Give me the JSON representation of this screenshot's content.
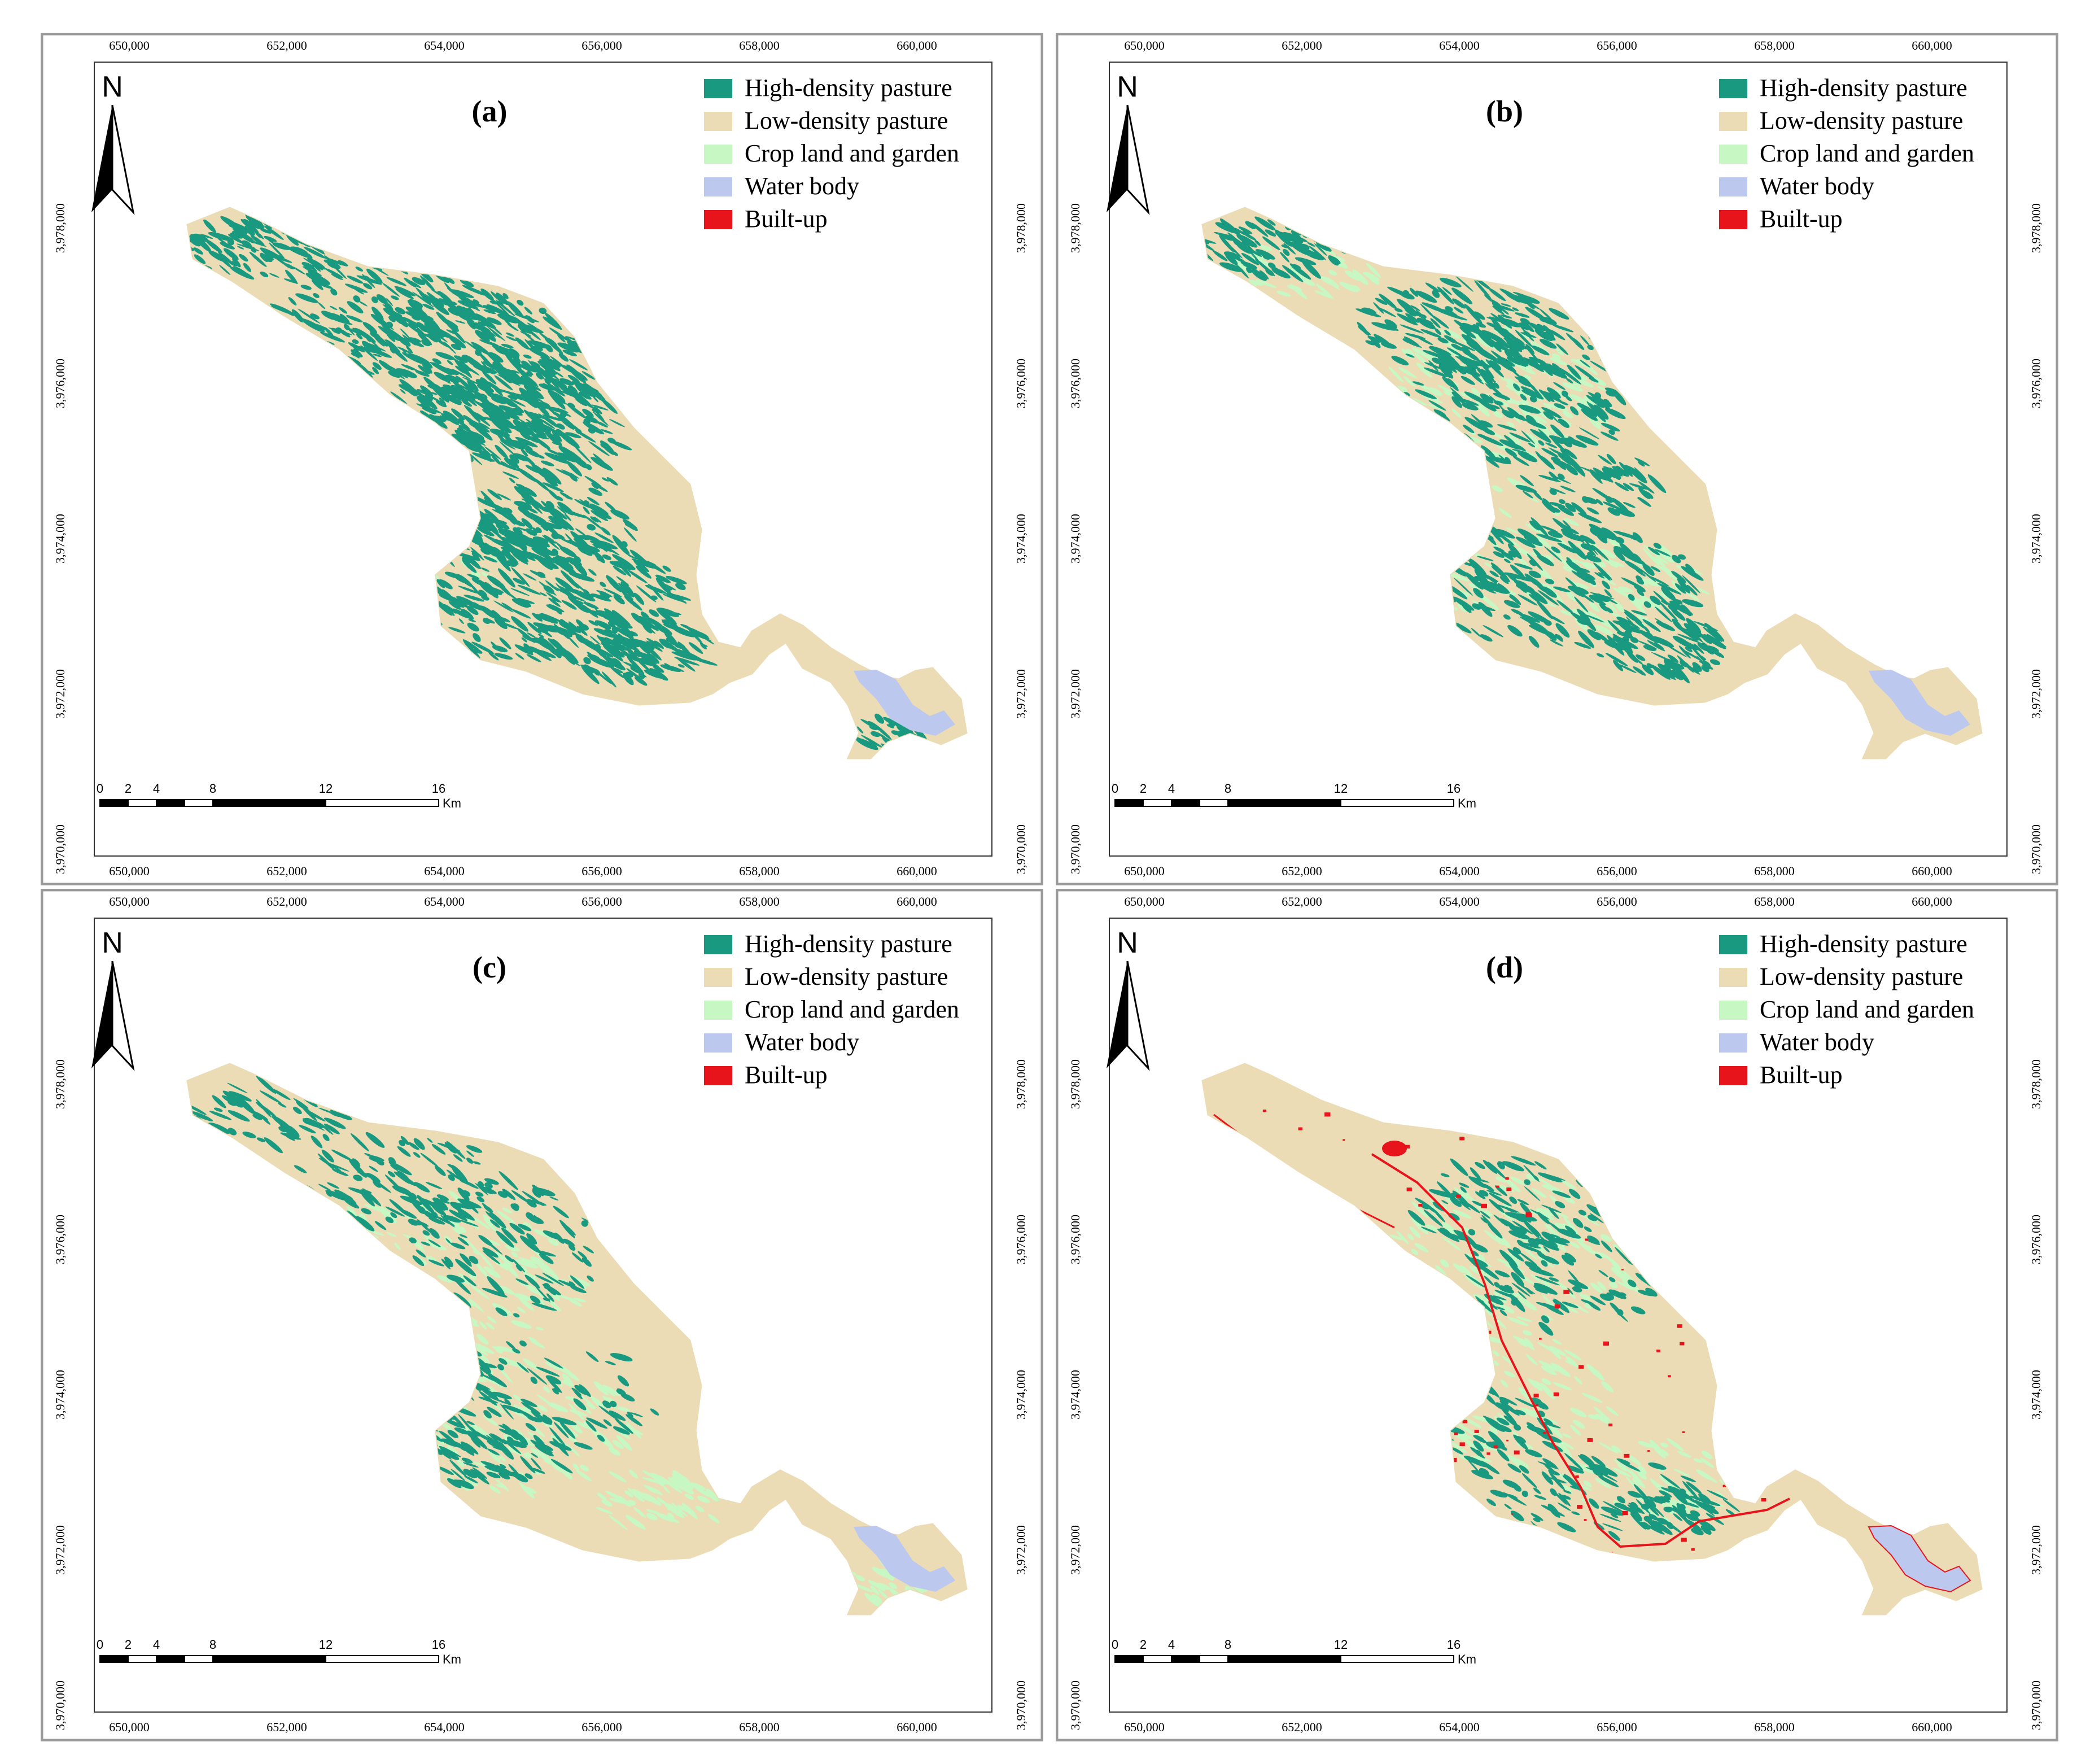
{
  "figure": {
    "legend_items": [
      {
        "label": "High-density pasture",
        "color": "#19997f"
      },
      {
        "label": "Low-density pasture",
        "color": "#ecdcb5"
      },
      {
        "label": "Crop land and garden",
        "color": "#c7f7c3"
      },
      {
        "label": "Water body",
        "color": "#bcc8ee"
      },
      {
        "label": "Built-up",
        "color": "#e8141b"
      }
    ],
    "x_ticks": [
      "650,000",
      "652,000",
      "654,000",
      "656,000",
      "658,000",
      "660,000"
    ],
    "y_ticks": [
      "3,970,000",
      "3,972,000",
      "3,974,000",
      "3,976,000",
      "3,978,000"
    ],
    "north_label": "N",
    "scale_ticks": [
      "0",
      "2",
      "4",
      "8",
      "12",
      "16"
    ],
    "scale_unit": "Km"
  },
  "panels": [
    {
      "label": "(a)"
    },
    {
      "label": "(b)"
    },
    {
      "label": "(c)"
    },
    {
      "label": "(d)"
    }
  ]
}
